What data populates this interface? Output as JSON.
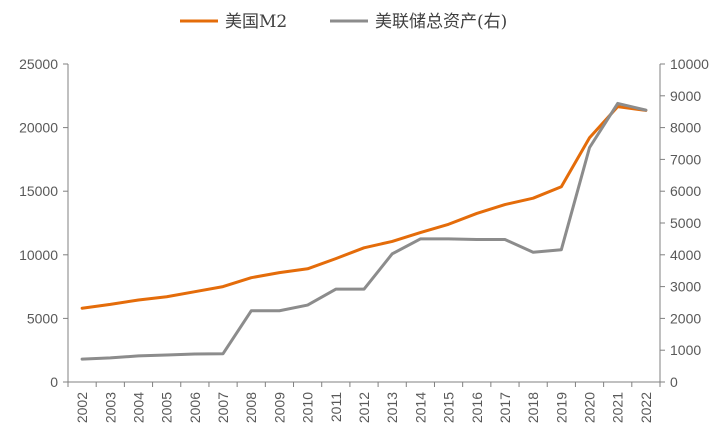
{
  "chart_data": {
    "type": "line",
    "title": "",
    "xlabel": "",
    "ylabel": "",
    "categories": [
      "2002",
      "2003",
      "2004",
      "2005",
      "2006",
      "2007",
      "2008",
      "2009",
      "2010",
      "2011",
      "2012",
      "2013",
      "2014",
      "2015",
      "2016",
      "2017",
      "2018",
      "2019",
      "2020",
      "2021",
      "2022"
    ],
    "ylim_left": [
      0,
      25000
    ],
    "yticks_left": [
      "0",
      "5000",
      "10000",
      "15000",
      "20000",
      "25000"
    ],
    "ylim_right": [
      0,
      10000
    ],
    "yticks_right": [
      "0",
      "1000",
      "2000",
      "3000",
      "4000",
      "5000",
      "6000",
      "7000",
      "8000",
      "9000",
      "10000"
    ],
    "grid": false,
    "legend_position": "top",
    "series": [
      {
        "name": "美国M2",
        "axis": "left",
        "color": "#E46C0A",
        "values": [
          5800,
          6100,
          6450,
          6700,
          7100,
          7500,
          8200,
          8600,
          8900,
          9700,
          10550,
          11050,
          11750,
          12400,
          13250,
          13950,
          14450,
          15350,
          19200,
          21650,
          21350
        ]
      },
      {
        "name": "美联储总资产(右)",
        "axis": "right",
        "color": "#8C8C8C",
        "values": [
          720,
          760,
          820,
          850,
          880,
          890,
          2240,
          2240,
          2420,
          2920,
          2920,
          4030,
          4500,
          4500,
          4480,
          4480,
          4080,
          4160,
          7370,
          8760,
          8550
        ]
      }
    ]
  }
}
